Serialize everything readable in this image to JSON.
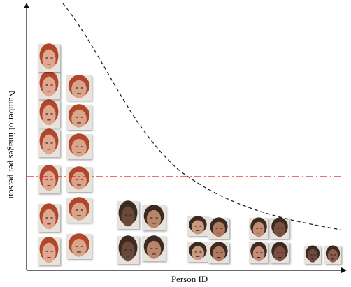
{
  "axes": {
    "x_label": "Person ID",
    "y_label": "Number of images per person"
  },
  "colors": {
    "axis": "#111111",
    "trend_curve": "#222222",
    "threshold_line": "#e02020"
  },
  "persons": [
    {
      "images": 7,
      "tone": "#e0a890"
    },
    {
      "images": 6,
      "tone": "#d9a48a"
    },
    {
      "images": 2,
      "tone": "#6b4a3a"
    },
    {
      "images": 2,
      "tone": "#b8856a"
    },
    {
      "images": 2,
      "tone": "#c99880"
    },
    {
      "images": 2,
      "tone": "#b07a62"
    },
    {
      "images": 2,
      "tone": "#c48c74"
    },
    {
      "images": 2,
      "tone": "#7a5040"
    },
    {
      "images": 1,
      "tone": "#6e4a3c"
    },
    {
      "images": 1,
      "tone": "#8a5e4c"
    }
  ]
}
